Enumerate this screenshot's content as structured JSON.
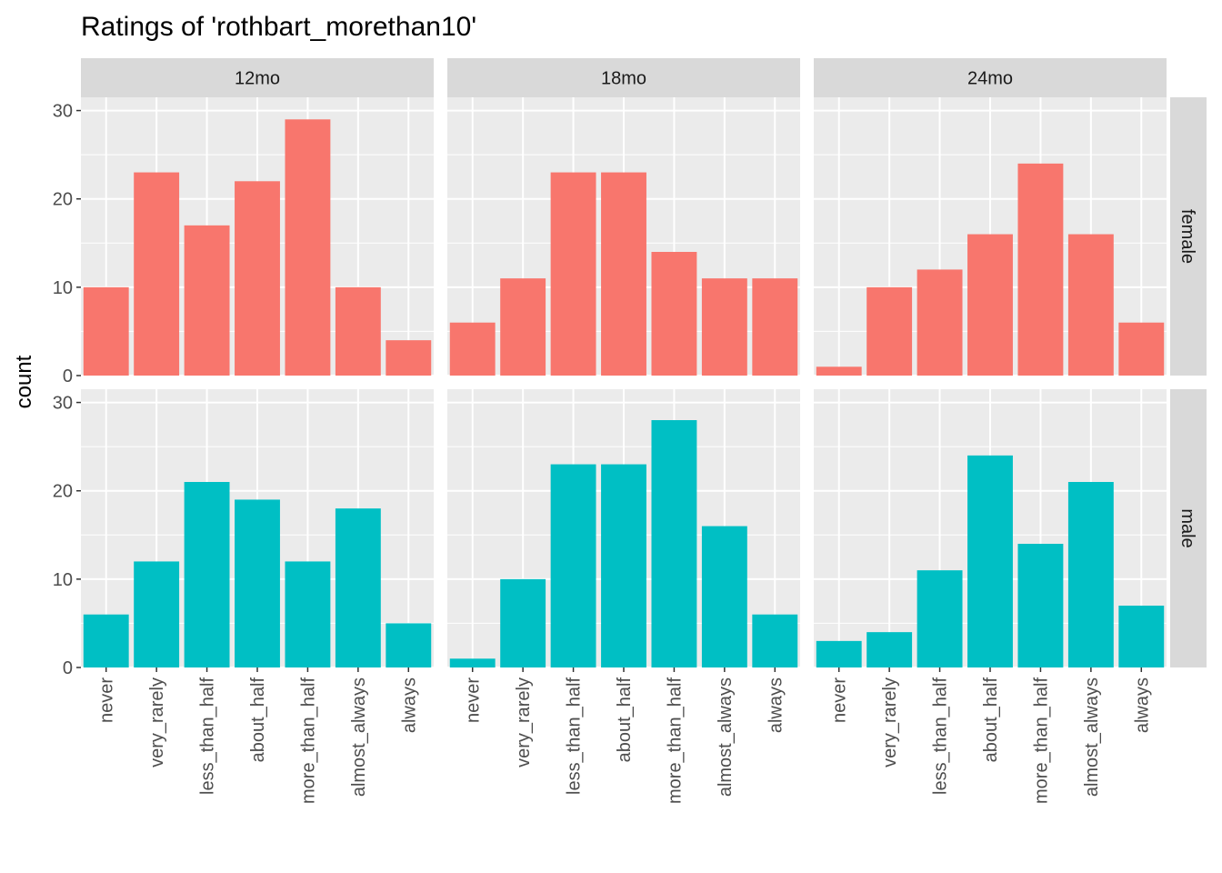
{
  "chart_data": {
    "type": "bar",
    "title": "Ratings of 'rothbart_morethan10'",
    "xlabel": "",
    "ylabel": "count",
    "ylim": [
      0,
      31.5
    ],
    "yticks": [
      "0",
      "10",
      "20",
      "30"
    ],
    "grid": true,
    "legend": "none",
    "categories": [
      "never",
      "very_rarely",
      "less_than_half",
      "about_half",
      "more_than_half",
      "almost_always",
      "always"
    ],
    "facet_columns": [
      "12mo",
      "18mo",
      "24mo"
    ],
    "facet_rows": [
      "female",
      "male"
    ],
    "colors": {
      "female": "#F8766D",
      "male": "#00BFC4",
      "panel": "#EBEBEB",
      "strip": "#D9D9D9"
    },
    "series": [
      {
        "name": "female",
        "values": {
          "12mo": [
            10,
            23,
            17,
            22,
            29,
            10,
            4
          ],
          "18mo": [
            6,
            11,
            23,
            23,
            14,
            11,
            11
          ],
          "24mo": [
            1,
            10,
            12,
            16,
            24,
            16,
            6
          ]
        }
      },
      {
        "name": "male",
        "values": {
          "12mo": [
            6,
            12,
            21,
            19,
            12,
            18,
            5
          ],
          "18mo": [
            1,
            10,
            23,
            23,
            28,
            16,
            6
          ],
          "24mo": [
            3,
            4,
            11,
            24,
            14,
            21,
            7
          ]
        }
      }
    ]
  }
}
